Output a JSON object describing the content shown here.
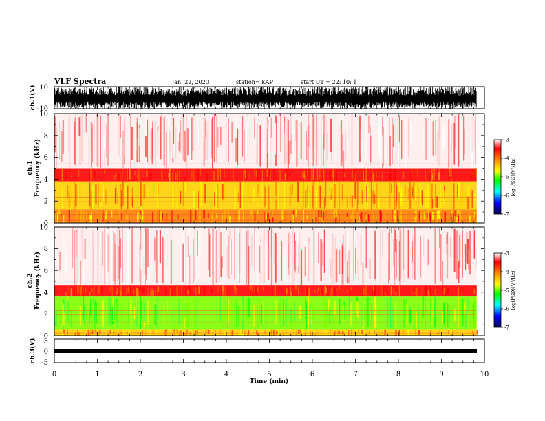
{
  "header": {
    "title": "VLF Spectra",
    "date": "Jan. 22, 2020",
    "station": "station= KAP",
    "start": "start  UT =   22: 10: 1"
  },
  "chart_data": [
    {
      "type": "line",
      "ylabel": "ch.1(V)",
      "ylim": [
        -10,
        10
      ],
      "ytick_labels": [
        "10",
        "-10"
      ],
      "xlim": [
        0,
        10
      ],
      "color": "#000000"
    },
    {
      "type": "heatmap",
      "ylabel": "ch.1\nFrequency (kHz)",
      "ylabel_lines": [
        "ch.1",
        "Frequency (kHz)"
      ],
      "ylim": [
        0,
        10
      ],
      "ytick_labels": [
        "0",
        "2",
        "4",
        "6",
        "8",
        "10"
      ],
      "xlim": [
        0,
        10
      ],
      "colorbar": {
        "label": "log(PSD)(V²/Hz)",
        "range": [
          -7,
          -3
        ],
        "tick_labels": [
          "-3",
          "-4",
          "-5",
          "-6",
          "-7"
        ]
      },
      "bands_khz": [
        {
          "from": 0.0,
          "to": 1.2,
          "level": "yellow-red"
        },
        {
          "from": 1.2,
          "to": 3.8,
          "level": "yellow"
        },
        {
          "from": 3.8,
          "to": 5.0,
          "level": "red"
        },
        {
          "from": 5.0,
          "to": 10.0,
          "level": "light-red"
        }
      ]
    },
    {
      "type": "heatmap",
      "ylabel": "ch.2\nFrequency (kHz)",
      "ylabel_lines": [
        "ch.2",
        "Frequency (kHz)"
      ],
      "ylim": [
        0,
        10
      ],
      "ytick_labels": [
        "0",
        "2",
        "4",
        "6",
        "8",
        "10"
      ],
      "xlim": [
        0,
        10
      ],
      "colorbar": {
        "label": "log(PSD)(V²/Hz)",
        "range": [
          -7,
          -3
        ],
        "tick_labels": [
          "-3",
          "-4",
          "-5",
          "-6",
          "-7"
        ]
      },
      "bands_khz": [
        {
          "from": 0.0,
          "to": 0.6,
          "level": "yellow"
        },
        {
          "from": 0.6,
          "to": 3.6,
          "level": "green"
        },
        {
          "from": 3.6,
          "to": 4.6,
          "level": "red"
        },
        {
          "from": 4.6,
          "to": 10.0,
          "level": "light-red"
        }
      ]
    },
    {
      "type": "line",
      "ylabel": "ch.3(V)",
      "ylim": [
        -5,
        5
      ],
      "ytick_labels": [
        "5",
        "0",
        "-5"
      ],
      "xlim": [
        0,
        10
      ],
      "color": "#000000"
    }
  ],
  "xaxis": {
    "label": "Time (min)",
    "range": [
      0,
      10
    ],
    "tick_labels": [
      "0",
      "1",
      "2",
      "3",
      "4",
      "5",
      "6",
      "7",
      "8",
      "9",
      "10"
    ]
  },
  "colors": {
    "red": "#ff0000",
    "yellow": "#ffff00",
    "green": "#00ff00",
    "cyan": "#00ffff",
    "blue": "#0000ff",
    "navy": "#000060"
  }
}
